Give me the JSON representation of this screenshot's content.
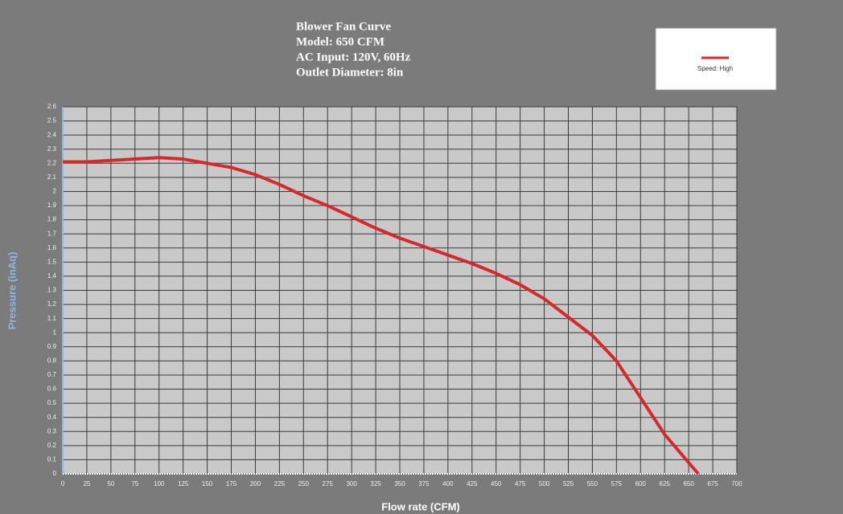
{
  "chart_data": {
    "type": "line",
    "title": "Blower Fan Curve",
    "subtitle": [
      "Model: 650 CFM",
      "AC Input: 120V, 60Hz",
      "Outlet Diameter: 8in"
    ],
    "x_label": "Flow rate (CFM)",
    "y_label": "Pressure (inAq)",
    "x": [
      0,
      25,
      50,
      75,
      100,
      125,
      150,
      175,
      200,
      225,
      250,
      275,
      300,
      325,
      350,
      375,
      400,
      425,
      450,
      475,
      500,
      525,
      550,
      575,
      600,
      625,
      660
    ],
    "series": [
      {
        "name": "Speed: High",
        "color": "#d42a2a",
        "values": [
          2.21,
          2.21,
          2.22,
          2.23,
          2.24,
          2.23,
          2.2,
          2.17,
          2.12,
          2.05,
          1.97,
          1.9,
          1.82,
          1.74,
          1.67,
          1.61,
          1.55,
          1.49,
          1.42,
          1.34,
          1.24,
          1.11,
          0.98,
          0.8,
          0.54,
          0.28,
          0
        ]
      }
    ],
    "xlim": [
      0,
      700
    ],
    "ylim": [
      0,
      2.6
    ],
    "xticks": [
      0,
      25,
      50,
      75,
      100,
      125,
      150,
      175,
      200,
      225,
      250,
      275,
      300,
      325,
      350,
      375,
      400,
      425,
      450,
      475,
      500,
      525,
      550,
      575,
      600,
      625,
      650,
      675,
      700
    ],
    "yticks": [
      0,
      0.1,
      0.2,
      0.3,
      0.4,
      0.5,
      0.6,
      0.7,
      0.8,
      0.9,
      1,
      1.1,
      1.2,
      1.3,
      1.4,
      1.5,
      1.6,
      1.7,
      1.8,
      1.9,
      2,
      2.1,
      2.2,
      2.3,
      2.4,
      2.5,
      2.6
    ],
    "grid": true,
    "legend": "upper right"
  }
}
